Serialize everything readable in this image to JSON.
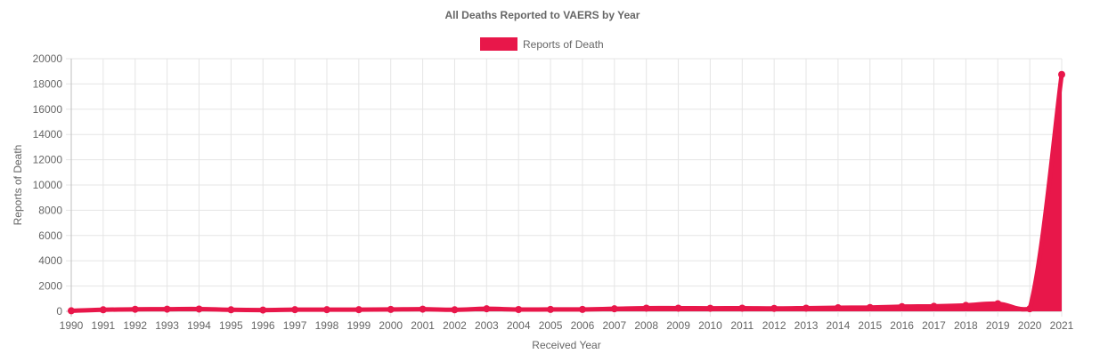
{
  "chart_data": {
    "type": "area",
    "title": "All Deaths Reported to VAERS by Year",
    "legend": {
      "position": "top",
      "entries": [
        "Reports of Death"
      ]
    },
    "xlabel": "Received Year",
    "ylabel": "Reports of Death",
    "ylim": [
      0,
      20000
    ],
    "ytick_step": 2000,
    "grid": true,
    "color": "#e8174a",
    "categories": [
      "1990",
      "1991",
      "1992",
      "1993",
      "1994",
      "1995",
      "1996",
      "1997",
      "1998",
      "1999",
      "2000",
      "2001",
      "2002",
      "2003",
      "2004",
      "2005",
      "2006",
      "2007",
      "2008",
      "2009",
      "2010",
      "2011",
      "2012",
      "2013",
      "2014",
      "2015",
      "2016",
      "2017",
      "2018",
      "2019",
      "2020",
      "2021"
    ],
    "series": [
      {
        "name": "Reports of Death",
        "values": [
          40,
          120,
          160,
          170,
          180,
          120,
          100,
          130,
          130,
          130,
          150,
          170,
          120,
          200,
          140,
          150,
          150,
          200,
          250,
          250,
          240,
          250,
          230,
          250,
          280,
          300,
          370,
          400,
          470,
          600,
          200,
          18750
        ]
      }
    ]
  }
}
